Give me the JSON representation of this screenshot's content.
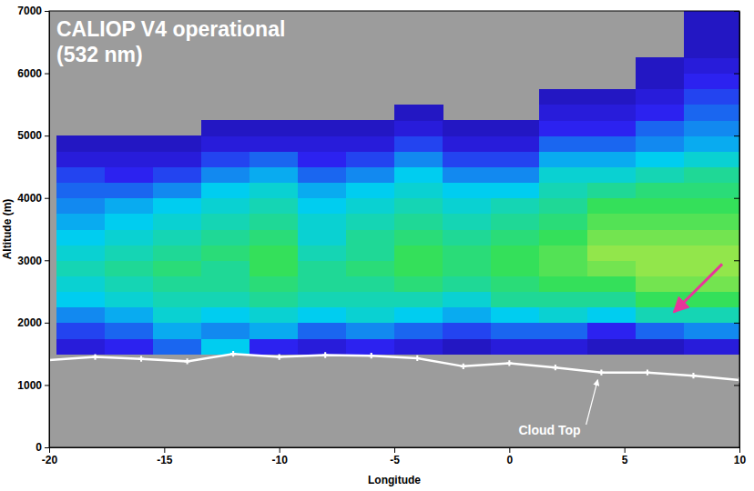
{
  "chart_data": {
    "type": "heatmap",
    "title": "CALIOP V4 operational",
    "subtitle": "(532 nm)",
    "x_label": "Longitude",
    "y_label": "Altitude (m)",
    "xlim": [
      -20,
      10
    ],
    "xticks": [
      -20,
      -15,
      -10,
      -5,
      0,
      5,
      10
    ],
    "ylim": [
      0,
      7000
    ],
    "yticks": [
      0,
      1000,
      2000,
      3000,
      4000,
      5000,
      6000,
      7000
    ],
    "zlim": [
      0,
      1
    ],
    "x_edges": [
      -19.7,
      -17.6,
      -15.5,
      -13.4,
      -11.3,
      -9.2,
      -7.1,
      -5.0,
      -2.9,
      -0.8,
      1.3,
      3.4,
      5.5,
      7.6,
      10.0
    ],
    "y_edges": [
      1000,
      1250,
      1500,
      1750,
      2000,
      2250,
      2500,
      2750,
      3000,
      3250,
      3500,
      3750,
      4000,
      4250,
      4500,
      4750,
      5000,
      5250,
      5500,
      5750,
      6000,
      6250,
      6500,
      6750,
      7000
    ],
    "cells": [
      [
        null,
        null,
        0.15,
        0.25,
        0.35,
        0.45,
        0.5,
        0.55,
        0.5,
        0.45,
        0.4,
        0.35,
        0.3,
        0.25,
        0.15,
        0.1,
        null,
        null,
        null,
        null,
        null,
        null,
        null,
        null
      ],
      [
        null,
        null,
        0.2,
        0.3,
        0.4,
        0.5,
        0.55,
        0.6,
        0.55,
        0.5,
        0.45,
        0.4,
        0.3,
        0.2,
        0.15,
        0.1,
        null,
        null,
        null,
        null,
        null,
        null,
        null,
        null
      ],
      [
        null,
        null,
        0.3,
        0.4,
        0.5,
        0.55,
        0.6,
        0.65,
        0.6,
        0.55,
        0.5,
        0.45,
        0.35,
        0.25,
        0.15,
        0.1,
        null,
        null,
        null,
        null,
        null,
        null,
        null,
        null
      ],
      [
        null,
        null,
        0.45,
        0.35,
        0.45,
        0.55,
        0.6,
        0.6,
        0.65,
        0.6,
        0.55,
        0.5,
        0.45,
        0.35,
        0.25,
        0.15,
        0.1,
        null,
        null,
        null,
        null,
        null,
        null,
        null
      ],
      [
        null,
        null,
        0.2,
        0.4,
        0.5,
        0.6,
        0.65,
        0.7,
        0.7,
        0.65,
        0.6,
        0.55,
        0.5,
        0.4,
        0.3,
        0.15,
        0.1,
        null,
        null,
        null,
        null,
        null,
        null,
        null
      ],
      [
        null,
        null,
        0.15,
        0.3,
        0.45,
        0.55,
        0.6,
        0.6,
        0.55,
        0.5,
        0.5,
        0.45,
        0.4,
        0.3,
        0.2,
        0.15,
        0.1,
        null,
        null,
        null,
        null,
        null,
        null,
        null
      ],
      [
        null,
        null,
        0.2,
        0.35,
        0.5,
        0.55,
        0.6,
        0.65,
        0.6,
        0.6,
        0.55,
        0.5,
        0.45,
        0.35,
        0.25,
        0.15,
        0.1,
        null,
        null,
        null,
        null,
        null,
        null,
        null
      ],
      [
        null,
        null,
        0.15,
        0.3,
        0.45,
        0.55,
        0.65,
        0.7,
        0.7,
        0.65,
        0.6,
        0.55,
        0.5,
        0.45,
        0.35,
        0.25,
        0.15,
        0.1,
        null,
        null,
        null,
        null,
        null,
        null
      ],
      [
        null,
        null,
        0.1,
        0.25,
        0.4,
        0.5,
        0.6,
        0.65,
        0.65,
        0.6,
        0.55,
        0.5,
        0.45,
        0.35,
        0.25,
        0.15,
        0.1,
        null,
        null,
        null,
        null,
        null,
        null,
        null
      ],
      [
        null,
        null,
        0.15,
        0.3,
        0.45,
        0.6,
        0.65,
        0.7,
        0.7,
        0.65,
        0.6,
        0.55,
        0.45,
        0.35,
        0.25,
        0.15,
        0.1,
        null,
        null,
        null,
        null,
        null,
        null,
        null
      ],
      [
        null,
        null,
        0.15,
        0.3,
        0.5,
        0.6,
        0.7,
        0.75,
        0.75,
        0.7,
        0.65,
        0.6,
        0.55,
        0.5,
        0.4,
        0.3,
        0.2,
        0.15,
        0.1,
        null,
        null,
        null,
        null,
        null
      ],
      [
        null,
        null,
        0.1,
        0.2,
        0.45,
        0.6,
        0.7,
        0.8,
        0.85,
        0.8,
        0.75,
        0.7,
        0.6,
        0.5,
        0.4,
        0.3,
        0.2,
        0.15,
        0.1,
        null,
        null,
        null,
        null,
        null
      ],
      [
        null,
        null,
        0.1,
        0.3,
        0.55,
        0.7,
        0.8,
        0.85,
        0.85,
        0.8,
        0.75,
        0.7,
        0.65,
        0.55,
        0.45,
        0.35,
        0.3,
        0.2,
        0.15,
        0.1,
        0.1,
        null,
        null,
        null
      ],
      [
        null,
        null,
        0.15,
        0.35,
        0.55,
        0.7,
        0.8,
        0.85,
        0.85,
        0.8,
        0.75,
        0.7,
        0.65,
        0.6,
        0.5,
        0.4,
        0.35,
        0.3,
        0.25,
        0.2,
        0.15,
        0.1,
        0.1,
        0.1
      ]
    ],
    "series": [
      {
        "name": "Cloud Top",
        "color": "#ffffff",
        "marker": "plus",
        "x": [
          -20,
          -18,
          -16,
          -14,
          -12,
          -10,
          -8,
          -6,
          -4,
          -2,
          0,
          2,
          4,
          6,
          8,
          10
        ],
        "values": [
          1400,
          1450,
          1420,
          1380,
          1500,
          1450,
          1480,
          1470,
          1430,
          1300,
          1350,
          1280,
          1200,
          1200,
          1150,
          1080
        ]
      }
    ]
  }
}
